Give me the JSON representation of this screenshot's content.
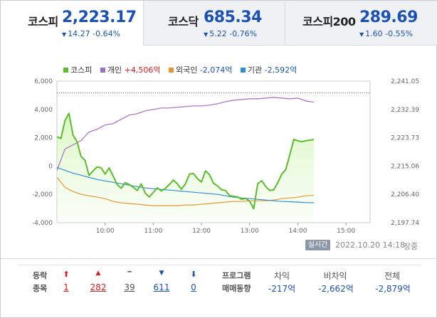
{
  "tabs": [
    {
      "name": "코스피",
      "price": "2,223.17",
      "change": "14.27",
      "change_pct": "-0.64%",
      "arrow": "▼",
      "active": true
    },
    {
      "name": "코스닥",
      "price": "685.34",
      "change": "5.22",
      "change_pct": "-0.76%",
      "arrow": "▼",
      "active": false
    },
    {
      "name": "코스피200",
      "price": "289.69",
      "change": "1.60",
      "change_pct": "-0.55%",
      "arrow": "▼",
      "active": false
    }
  ],
  "legend": [
    {
      "label": "코스피",
      "value": "",
      "color": "#5bbd2b"
    },
    {
      "label": "개인",
      "value": "+4,506억",
      "color": "#a56bc9",
      "tone": "up"
    },
    {
      "label": "외국인",
      "value": "-2,074억",
      "color": "#e89531",
      "tone": "down"
    },
    {
      "label": "기관",
      "value": "-2,592억",
      "color": "#2f8ed6",
      "tone": "down"
    }
  ],
  "chart_data": {
    "type": "line",
    "x_ticks": [
      "10:00",
      "11:00",
      "12:00",
      "13:00",
      "14:00",
      "15:00"
    ],
    "x_range": [
      "09:00",
      "15:30"
    ],
    "left_axis": {
      "ticks": [
        "6,000",
        "4,000",
        "2,000",
        "0",
        "-2,000",
        "-4,000"
      ],
      "range": [
        -4000,
        6000
      ]
    },
    "right_axis": {
      "ticks": [
        "2,241.05",
        "2,232.39",
        "2,223.73",
        "2,215.06",
        "2,206.40",
        "2,197.74"
      ],
      "range": [
        2197.74,
        2241.05
      ]
    },
    "prev_close_ref": 2237.44,
    "series": [
      {
        "name": "코스피",
        "axis": "right",
        "color": "#5bbd2b",
        "x": [
          "09:00",
          "09:05",
          "09:10",
          "09:15",
          "09:20",
          "09:25",
          "09:30",
          "09:35",
          "09:40",
          "09:45",
          "09:50",
          "09:55",
          "10:00",
          "10:05",
          "10:10",
          "10:15",
          "10:20",
          "10:25",
          "10:30",
          "10:35",
          "10:40",
          "10:45",
          "10:50",
          "10:55",
          "11:00",
          "11:05",
          "11:10",
          "11:15",
          "11:20",
          "11:25",
          "11:30",
          "11:35",
          "11:40",
          "11:45",
          "11:50",
          "11:55",
          "12:00",
          "12:05",
          "12:10",
          "12:15",
          "12:20",
          "12:25",
          "12:30",
          "12:35",
          "12:40",
          "12:45",
          "12:50",
          "12:55",
          "13:00",
          "13:05",
          "13:10",
          "13:15",
          "13:20",
          "13:25",
          "13:30",
          "13:35",
          "13:40",
          "13:45",
          "13:50",
          "13:55",
          "14:00",
          "14:05",
          "14:10",
          "14:15",
          "14:20"
        ],
        "y": [
          2224.0,
          2223.5,
          2229.0,
          2231.2,
          2224.5,
          2222.6,
          2218.0,
          2216.8,
          2212.2,
          2213.6,
          2214.8,
          2214.5,
          2212.6,
          2214.5,
          2212.0,
          2209.4,
          2208.3,
          2210.0,
          2209.4,
          2208.6,
          2207.6,
          2209.6,
          2206.8,
          2205.6,
          2207.0,
          2208.4,
          2207.4,
          2208.2,
          2209.4,
          2210.8,
          2209.6,
          2208.0,
          2209.6,
          2212.6,
          2212.8,
          2211.2,
          2210.2,
          2213.6,
          2212.4,
          2209.8,
          2209.0,
          2207.8,
          2207.6,
          2206.0,
          2205.8,
          2205.6,
          2204.9,
          2205.2,
          2204.3,
          2202.0,
          2209.6,
          2210.6,
          2208.8,
          2207.6,
          2207.8,
          2210.0,
          2212.6,
          2214.0,
          2218.6,
          2223.2,
          2222.8,
          2222.5,
          2222.8,
          2223.0,
          2223.17
        ]
      },
      {
        "name": "개인",
        "axis": "left",
        "color": "#a56bc9",
        "x": [
          "09:00",
          "09:10",
          "09:20",
          "09:30",
          "09:40",
          "09:50",
          "10:00",
          "10:10",
          "10:20",
          "10:30",
          "10:40",
          "10:50",
          "11:00",
          "11:10",
          "11:20",
          "11:30",
          "11:40",
          "11:50",
          "12:00",
          "12:10",
          "12:20",
          "12:30",
          "12:40",
          "12:50",
          "13:00",
          "13:10",
          "13:20",
          "13:30",
          "13:40",
          "13:50",
          "14:00",
          "14:10",
          "14:20"
        ],
        "y": [
          -300,
          1200,
          1500,
          1800,
          2400,
          2600,
          2900,
          3000,
          3300,
          3600,
          3700,
          3900,
          4000,
          4100,
          4100,
          4150,
          4200,
          4250,
          4250,
          4300,
          4400,
          4550,
          4650,
          4700,
          4750,
          4750,
          4800,
          4850,
          4800,
          4750,
          4800,
          4600,
          4506
        ]
      },
      {
        "name": "외국인",
        "axis": "left",
        "color": "#e89531",
        "x": [
          "09:00",
          "09:10",
          "09:20",
          "09:30",
          "09:40",
          "09:50",
          "10:00",
          "10:10",
          "10:20",
          "10:30",
          "10:40",
          "10:50",
          "11:00",
          "11:10",
          "11:20",
          "11:30",
          "11:40",
          "11:50",
          "12:00",
          "12:10",
          "12:20",
          "12:30",
          "12:40",
          "12:50",
          "13:00",
          "13:10",
          "13:20",
          "13:30",
          "13:40",
          "13:50",
          "14:00",
          "14:10",
          "14:20"
        ],
        "y": [
          -800,
          -1500,
          -1800,
          -2000,
          -2100,
          -2200,
          -2300,
          -2500,
          -2600,
          -2650,
          -2700,
          -2750,
          -2800,
          -2800,
          -2800,
          -2800,
          -2750,
          -2750,
          -2700,
          -2650,
          -2600,
          -2550,
          -2500,
          -2500,
          -2450,
          -2450,
          -2450,
          -2400,
          -2300,
          -2250,
          -2200,
          -2100,
          -2074
        ]
      },
      {
        "name": "기관",
        "axis": "left",
        "color": "#2f8ed6",
        "x": [
          "09:00",
          "09:10",
          "09:20",
          "09:30",
          "09:40",
          "09:50",
          "10:00",
          "10:10",
          "10:20",
          "10:30",
          "10:40",
          "10:50",
          "11:00",
          "11:10",
          "11:20",
          "11:30",
          "11:40",
          "11:50",
          "12:00",
          "12:10",
          "12:20",
          "12:30",
          "12:40",
          "12:50",
          "13:00",
          "13:10",
          "13:20",
          "13:30",
          "13:40",
          "13:50",
          "14:00",
          "14:10",
          "14:20"
        ],
        "y": [
          -100,
          -300,
          -500,
          -650,
          -800,
          -950,
          -1050,
          -1150,
          -1250,
          -1350,
          -1450,
          -1550,
          -1600,
          -1650,
          -1700,
          -1750,
          -1800,
          -1850,
          -1900,
          -1950,
          -2000,
          -2100,
          -2200,
          -2250,
          -2300,
          -2350,
          -2400,
          -2450,
          -2500,
          -2520,
          -2550,
          -2580,
          -2592
        ]
      }
    ]
  },
  "status": {
    "realtime_label": "실시간",
    "timestamp": "2022.10.20 14:18",
    "market_state": "장중"
  },
  "breadth": {
    "label1": "등락",
    "label2": "종목",
    "items": [
      {
        "icon": "⬆",
        "value": "1",
        "tone": "red"
      },
      {
        "icon": "▲",
        "value": "282",
        "tone": "red"
      },
      {
        "icon": "━",
        "value": "39",
        "tone": "gray"
      },
      {
        "icon": "▼",
        "value": "611",
        "tone": "blue"
      },
      {
        "icon": "⬇",
        "value": "0",
        "tone": "blue"
      }
    ]
  },
  "program": {
    "label1": "프로그램",
    "label2": "매매동향",
    "cols": [
      {
        "head": "차익",
        "value": "-217억"
      },
      {
        "head": "비차익",
        "value": "-2,662억"
      },
      {
        "head": "전체",
        "value": "-2,879억"
      }
    ]
  }
}
